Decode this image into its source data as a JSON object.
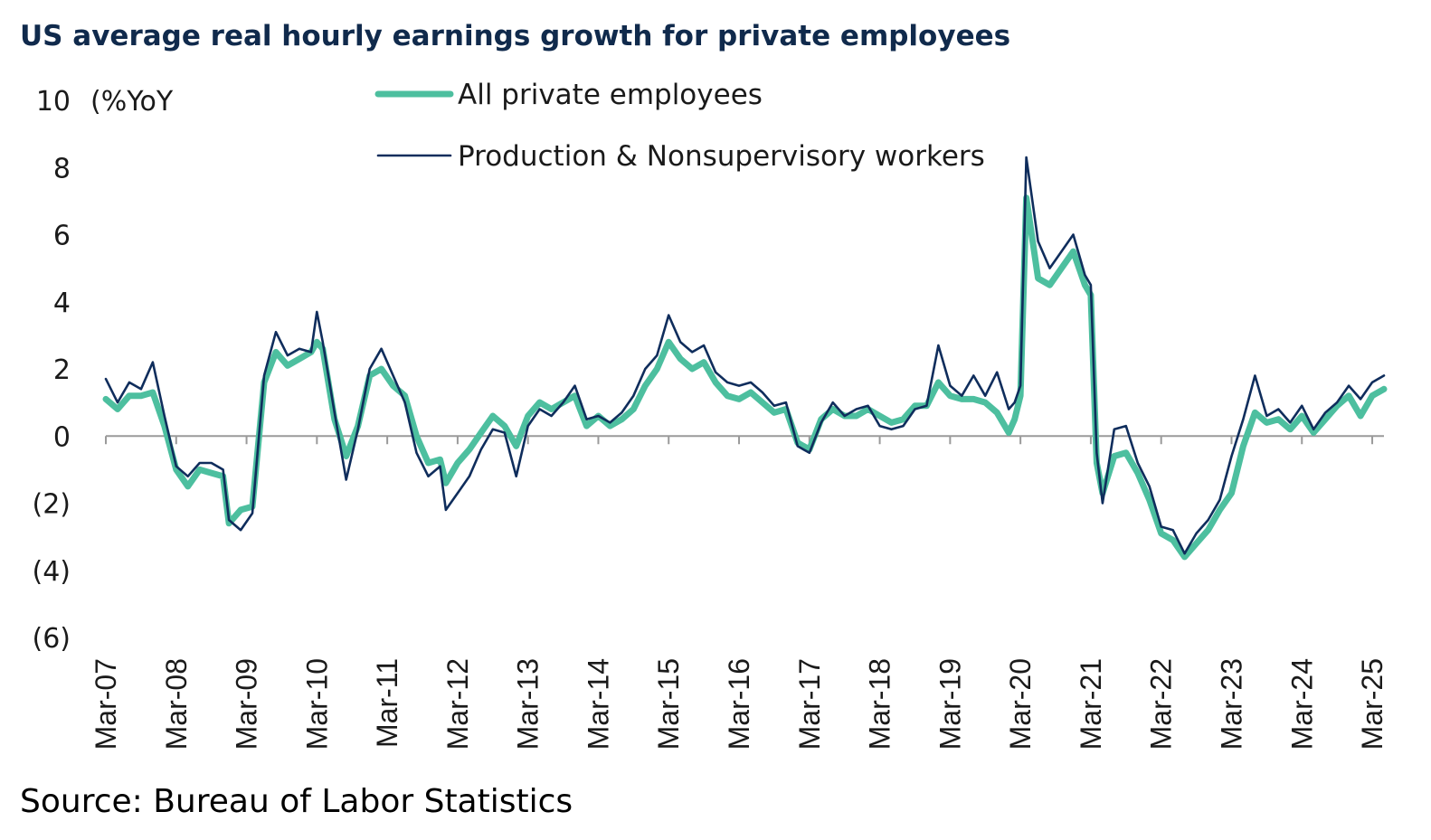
{
  "title": "US average real hourly earnings growth for private employees",
  "source": "Source: Bureau of Labor Statistics",
  "colors": {
    "all_private": "#4dbf9f",
    "production": "#0f2d5c",
    "axis": "#9a9a9a",
    "title": "#102a4c"
  },
  "chart_data": {
    "type": "line",
    "title": "US average real hourly earnings growth for private employees",
    "ylabel": "(%YoY",
    "ylim": [
      -6,
      10
    ],
    "yticks": [
      10,
      8,
      6,
      4,
      2,
      0,
      -2,
      -4,
      -6
    ],
    "ytick_labels": [
      "10",
      "8",
      "6",
      "4",
      "2",
      "0",
      "(2)",
      "(4)",
      "(6)"
    ],
    "xlim": [
      "2007-03",
      "2025-05"
    ],
    "xticks": [
      "2007-03",
      "2008-03",
      "2009-03",
      "2010-03",
      "2011-03",
      "2012-03",
      "2013-03",
      "2014-03",
      "2015-03",
      "2016-03",
      "2017-03",
      "2018-03",
      "2019-03",
      "2020-03",
      "2021-03",
      "2022-03",
      "2023-03",
      "2024-03",
      "2025-03"
    ],
    "xtick_labels": [
      "Mar-07",
      "Mar-08",
      "Mar-09",
      "Mar-10",
      "Mar-11",
      "Mar-12",
      "Mar-13",
      "Mar-14",
      "Mar-15",
      "Mar-16",
      "Mar-17",
      "Mar-18",
      "Mar-19",
      "Mar-20",
      "Mar-21",
      "Mar-22",
      "Mar-23",
      "Mar-24",
      "Mar-25"
    ],
    "legend_position": "top-center",
    "grid": false,
    "series": [
      {
        "name": "All private employees",
        "points": [
          [
            "2007-03",
            1.1
          ],
          [
            "2007-05",
            0.8
          ],
          [
            "2007-07",
            1.2
          ],
          [
            "2007-09",
            1.2
          ],
          [
            "2007-11",
            1.3
          ],
          [
            "2008-01",
            0.3
          ],
          [
            "2008-03",
            -1.0
          ],
          [
            "2008-05",
            -1.5
          ],
          [
            "2008-07",
            -1.0
          ],
          [
            "2008-09",
            -1.1
          ],
          [
            "2008-11",
            -1.2
          ],
          [
            "2008-12",
            -2.6
          ],
          [
            "2009-02",
            -2.2
          ],
          [
            "2009-04",
            -2.1
          ],
          [
            "2009-06",
            1.6
          ],
          [
            "2009-08",
            2.5
          ],
          [
            "2009-10",
            2.1
          ],
          [
            "2009-12",
            2.3
          ],
          [
            "2010-02",
            2.5
          ],
          [
            "2010-03",
            2.8
          ],
          [
            "2010-04",
            2.6
          ],
          [
            "2010-06",
            0.5
          ],
          [
            "2010-08",
            -0.6
          ],
          [
            "2010-10",
            0.3
          ],
          [
            "2010-12",
            1.8
          ],
          [
            "2011-02",
            2.0
          ],
          [
            "2011-04",
            1.5
          ],
          [
            "2011-06",
            1.2
          ],
          [
            "2011-08",
            0.0
          ],
          [
            "2011-10",
            -0.8
          ],
          [
            "2011-12",
            -0.7
          ],
          [
            "2012-01",
            -1.4
          ],
          [
            "2012-03",
            -0.8
          ],
          [
            "2012-05",
            -0.4
          ],
          [
            "2012-07",
            0.1
          ],
          [
            "2012-09",
            0.6
          ],
          [
            "2012-11",
            0.3
          ],
          [
            "2013-01",
            -0.3
          ],
          [
            "2013-03",
            0.6
          ],
          [
            "2013-05",
            1.0
          ],
          [
            "2013-07",
            0.8
          ],
          [
            "2013-09",
            1.0
          ],
          [
            "2013-11",
            1.2
          ],
          [
            "2014-01",
            0.3
          ],
          [
            "2014-03",
            0.6
          ],
          [
            "2014-05",
            0.3
          ],
          [
            "2014-07",
            0.5
          ],
          [
            "2014-09",
            0.8
          ],
          [
            "2014-11",
            1.5
          ],
          [
            "2015-01",
            2.0
          ],
          [
            "2015-03",
            2.8
          ],
          [
            "2015-05",
            2.3
          ],
          [
            "2015-07",
            2.0
          ],
          [
            "2015-09",
            2.2
          ],
          [
            "2015-11",
            1.6
          ],
          [
            "2016-01",
            1.2
          ],
          [
            "2016-03",
            1.1
          ],
          [
            "2016-05",
            1.3
          ],
          [
            "2016-07",
            1.0
          ],
          [
            "2016-09",
            0.7
          ],
          [
            "2016-11",
            0.8
          ],
          [
            "2017-01",
            -0.2
          ],
          [
            "2017-03",
            -0.4
          ],
          [
            "2017-05",
            0.5
          ],
          [
            "2017-07",
            0.8
          ],
          [
            "2017-09",
            0.6
          ],
          [
            "2017-11",
            0.6
          ],
          [
            "2018-01",
            0.8
          ],
          [
            "2018-03",
            0.6
          ],
          [
            "2018-05",
            0.4
          ],
          [
            "2018-07",
            0.5
          ],
          [
            "2018-09",
            0.9
          ],
          [
            "2018-11",
            0.9
          ],
          [
            "2019-01",
            1.6
          ],
          [
            "2019-03",
            1.2
          ],
          [
            "2019-05",
            1.1
          ],
          [
            "2019-07",
            1.1
          ],
          [
            "2019-09",
            1.0
          ],
          [
            "2019-11",
            0.7
          ],
          [
            "2020-01",
            0.1
          ],
          [
            "2020-02",
            0.5
          ],
          [
            "2020-03",
            1.2
          ],
          [
            "2020-04",
            7.1
          ],
          [
            "2020-06",
            4.7
          ],
          [
            "2020-08",
            4.5
          ],
          [
            "2020-10",
            5.0
          ],
          [
            "2020-12",
            5.5
          ],
          [
            "2021-02",
            4.5
          ],
          [
            "2021-03",
            4.2
          ],
          [
            "2021-04",
            -0.8
          ],
          [
            "2021-05",
            -1.7
          ],
          [
            "2021-07",
            -0.6
          ],
          [
            "2021-09",
            -0.5
          ],
          [
            "2021-11",
            -1.1
          ],
          [
            "2022-01",
            -1.9
          ],
          [
            "2022-03",
            -2.9
          ],
          [
            "2022-05",
            -3.1
          ],
          [
            "2022-07",
            -3.6
          ],
          [
            "2022-09",
            -3.2
          ],
          [
            "2022-11",
            -2.8
          ],
          [
            "2023-01",
            -2.2
          ],
          [
            "2023-03",
            -1.7
          ],
          [
            "2023-05",
            -0.3
          ],
          [
            "2023-07",
            0.7
          ],
          [
            "2023-09",
            0.4
          ],
          [
            "2023-11",
            0.5
          ],
          [
            "2024-01",
            0.2
          ],
          [
            "2024-03",
            0.6
          ],
          [
            "2024-05",
            0.1
          ],
          [
            "2024-07",
            0.5
          ],
          [
            "2024-09",
            0.9
          ],
          [
            "2024-11",
            1.2
          ],
          [
            "2025-01",
            0.6
          ],
          [
            "2025-03",
            1.2
          ],
          [
            "2025-05",
            1.4
          ]
        ]
      },
      {
        "name": "Production & Nonsupervisory workers",
        "points": [
          [
            "2007-03",
            1.7
          ],
          [
            "2007-05",
            1.0
          ],
          [
            "2007-07",
            1.6
          ],
          [
            "2007-09",
            1.4
          ],
          [
            "2007-11",
            2.2
          ],
          [
            "2008-01",
            0.6
          ],
          [
            "2008-03",
            -0.9
          ],
          [
            "2008-05",
            -1.2
          ],
          [
            "2008-07",
            -0.8
          ],
          [
            "2008-09",
            -0.8
          ],
          [
            "2008-11",
            -1.0
          ],
          [
            "2008-12",
            -2.5
          ],
          [
            "2009-02",
            -2.8
          ],
          [
            "2009-04",
            -2.3
          ],
          [
            "2009-06",
            1.8
          ],
          [
            "2009-08",
            3.1
          ],
          [
            "2009-10",
            2.4
          ],
          [
            "2009-12",
            2.6
          ],
          [
            "2010-02",
            2.5
          ],
          [
            "2010-03",
            3.7
          ],
          [
            "2010-04",
            2.8
          ],
          [
            "2010-06",
            0.7
          ],
          [
            "2010-08",
            -1.3
          ],
          [
            "2010-10",
            0.2
          ],
          [
            "2010-12",
            2.0
          ],
          [
            "2011-02",
            2.6
          ],
          [
            "2011-04",
            1.8
          ],
          [
            "2011-06",
            1.0
          ],
          [
            "2011-08",
            -0.5
          ],
          [
            "2011-10",
            -1.2
          ],
          [
            "2011-12",
            -0.9
          ],
          [
            "2012-01",
            -2.2
          ],
          [
            "2012-03",
            -1.7
          ],
          [
            "2012-05",
            -1.2
          ],
          [
            "2012-07",
            -0.4
          ],
          [
            "2012-09",
            0.2
          ],
          [
            "2012-11",
            0.1
          ],
          [
            "2013-01",
            -1.2
          ],
          [
            "2013-03",
            0.3
          ],
          [
            "2013-05",
            0.8
          ],
          [
            "2013-07",
            0.6
          ],
          [
            "2013-09",
            1.0
          ],
          [
            "2013-11",
            1.5
          ],
          [
            "2014-01",
            0.5
          ],
          [
            "2014-03",
            0.6
          ],
          [
            "2014-05",
            0.4
          ],
          [
            "2014-07",
            0.7
          ],
          [
            "2014-09",
            1.2
          ],
          [
            "2014-11",
            2.0
          ],
          [
            "2015-01",
            2.4
          ],
          [
            "2015-03",
            3.6
          ],
          [
            "2015-05",
            2.8
          ],
          [
            "2015-07",
            2.5
          ],
          [
            "2015-09",
            2.7
          ],
          [
            "2015-11",
            1.9
          ],
          [
            "2016-01",
            1.6
          ],
          [
            "2016-03",
            1.5
          ],
          [
            "2016-05",
            1.6
          ],
          [
            "2016-07",
            1.3
          ],
          [
            "2016-09",
            0.9
          ],
          [
            "2016-11",
            1.0
          ],
          [
            "2017-01",
            -0.3
          ],
          [
            "2017-03",
            -0.5
          ],
          [
            "2017-05",
            0.4
          ],
          [
            "2017-07",
            1.0
          ],
          [
            "2017-09",
            0.6
          ],
          [
            "2017-11",
            0.8
          ],
          [
            "2018-01",
            0.9
          ],
          [
            "2018-03",
            0.3
          ],
          [
            "2018-05",
            0.2
          ],
          [
            "2018-07",
            0.3
          ],
          [
            "2018-09",
            0.8
          ],
          [
            "2018-11",
            0.9
          ],
          [
            "2019-01",
            2.7
          ],
          [
            "2019-03",
            1.5
          ],
          [
            "2019-05",
            1.2
          ],
          [
            "2019-07",
            1.8
          ],
          [
            "2019-09",
            1.2
          ],
          [
            "2019-11",
            1.9
          ],
          [
            "2020-01",
            0.8
          ],
          [
            "2020-02",
            1.0
          ],
          [
            "2020-03",
            1.5
          ],
          [
            "2020-04",
            8.3
          ],
          [
            "2020-06",
            5.8
          ],
          [
            "2020-08",
            5.0
          ],
          [
            "2020-10",
            5.5
          ],
          [
            "2020-12",
            6.0
          ],
          [
            "2021-02",
            4.8
          ],
          [
            "2021-03",
            4.5
          ],
          [
            "2021-04",
            -0.5
          ],
          [
            "2021-05",
            -2.0
          ],
          [
            "2021-07",
            0.2
          ],
          [
            "2021-09",
            0.3
          ],
          [
            "2021-11",
            -0.8
          ],
          [
            "2022-01",
            -1.5
          ],
          [
            "2022-03",
            -2.7
          ],
          [
            "2022-05",
            -2.8
          ],
          [
            "2022-07",
            -3.5
          ],
          [
            "2022-09",
            -2.9
          ],
          [
            "2022-11",
            -2.5
          ],
          [
            "2023-01",
            -1.9
          ],
          [
            "2023-03",
            -0.6
          ],
          [
            "2023-05",
            0.5
          ],
          [
            "2023-07",
            1.8
          ],
          [
            "2023-09",
            0.6
          ],
          [
            "2023-11",
            0.8
          ],
          [
            "2024-01",
            0.4
          ],
          [
            "2024-03",
            0.9
          ],
          [
            "2024-05",
            0.2
          ],
          [
            "2024-07",
            0.7
          ],
          [
            "2024-09",
            1.0
          ],
          [
            "2024-11",
            1.5
          ],
          [
            "2025-01",
            1.1
          ],
          [
            "2025-03",
            1.6
          ],
          [
            "2025-05",
            1.8
          ]
        ]
      }
    ]
  }
}
